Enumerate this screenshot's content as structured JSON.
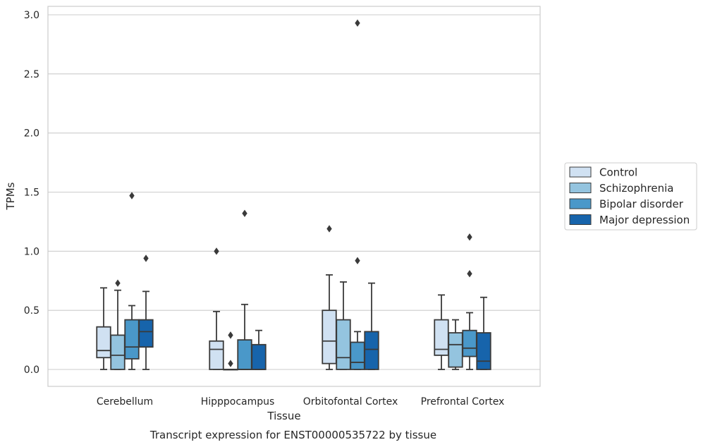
{
  "chart_data": {
    "type": "boxplot",
    "title": "Transcript expression for ENST00000535722 by tissue",
    "xlabel": "Tissue",
    "ylabel": "TPMs",
    "ylim": [
      -0.14,
      3.08
    ],
    "yticks": [
      0.0,
      0.5,
      1.0,
      1.5,
      2.0,
      2.5,
      3.0
    ],
    "ytick_labels": [
      "0.0",
      "0.5",
      "1.0",
      "1.5",
      "2.0",
      "2.5",
      "3.0"
    ],
    "grid": true,
    "legend_position": "right",
    "categories": [
      "Cerebellum",
      "Hipppocampus",
      "Orbitofontal Cortex",
      "Prefrontal Cortex"
    ],
    "series": [
      {
        "name": "Control",
        "color": "#d0e1f2",
        "boxes": [
          {
            "whislo": 0.0,
            "q1": 0.1,
            "med": 0.16,
            "q3": 0.36,
            "whishi": 0.69,
            "fliers": []
          },
          {
            "whislo": 0.0,
            "q1": 0.0,
            "med": 0.17,
            "q3": 0.24,
            "whishi": 0.49,
            "fliers": [
              1.0
            ]
          },
          {
            "whislo": 0.0,
            "q1": 0.05,
            "med": 0.24,
            "q3": 0.5,
            "whishi": 0.8,
            "fliers": [
              1.19
            ]
          },
          {
            "whislo": 0.0,
            "q1": 0.12,
            "med": 0.17,
            "q3": 0.42,
            "whishi": 0.63,
            "fliers": []
          }
        ]
      },
      {
        "name": "Schizophrenia",
        "color": "#94c4df",
        "boxes": [
          {
            "whislo": 0.0,
            "q1": 0.0,
            "med": 0.12,
            "q3": 0.29,
            "whishi": 0.67,
            "fliers": [
              0.73
            ]
          },
          {
            "whislo": 0.0,
            "q1": 0.0,
            "med": 0.0,
            "q3": 0.0,
            "whishi": 0.0,
            "fliers": [
              0.05,
              0.29
            ]
          },
          {
            "whislo": 0.0,
            "q1": 0.0,
            "med": 0.1,
            "q3": 0.42,
            "whishi": 0.74,
            "fliers": []
          },
          {
            "whislo": 0.0,
            "q1": 0.02,
            "med": 0.21,
            "q3": 0.31,
            "whishi": 0.42,
            "fliers": []
          }
        ]
      },
      {
        "name": "Bipolar disorder",
        "color": "#4a98c9",
        "boxes": [
          {
            "whislo": 0.0,
            "q1": 0.09,
            "med": 0.19,
            "q3": 0.42,
            "whishi": 0.54,
            "fliers": [
              1.47
            ]
          },
          {
            "whislo": 0.0,
            "q1": 0.0,
            "med": 0.0,
            "q3": 0.25,
            "whishi": 0.55,
            "fliers": [
              1.32
            ]
          },
          {
            "whislo": 0.0,
            "q1": 0.0,
            "med": 0.06,
            "q3": 0.23,
            "whishi": 0.32,
            "fliers": [
              0.92,
              2.93
            ]
          },
          {
            "whislo": 0.0,
            "q1": 0.11,
            "med": 0.18,
            "q3": 0.33,
            "whishi": 0.48,
            "fliers": [
              0.81,
              1.12
            ]
          }
        ]
      },
      {
        "name": "Major depression",
        "color": "#1764ab",
        "boxes": [
          {
            "whislo": 0.0,
            "q1": 0.19,
            "med": 0.32,
            "q3": 0.42,
            "whishi": 0.66,
            "fliers": [
              0.94
            ]
          },
          {
            "whislo": 0.0,
            "q1": 0.0,
            "med": 0.0,
            "q3": 0.21,
            "whishi": 0.33,
            "fliers": []
          },
          {
            "whislo": 0.0,
            "q1": 0.0,
            "med": 0.17,
            "q3": 0.32,
            "whishi": 0.73,
            "fliers": []
          },
          {
            "whislo": 0.0,
            "q1": 0.0,
            "med": 0.07,
            "q3": 0.31,
            "whishi": 0.61,
            "fliers": []
          }
        ]
      }
    ]
  }
}
